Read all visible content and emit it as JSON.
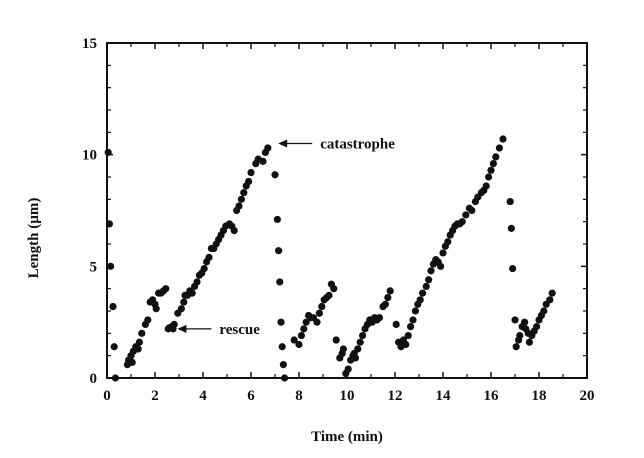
{
  "chart_data": {
    "type": "scatter",
    "title": "",
    "xlabel": "Time (min)",
    "ylabel": "Length (µm)",
    "xlim": [
      0,
      20
    ],
    "ylim": [
      0,
      15
    ],
    "xticks": [
      0,
      2,
      4,
      6,
      8,
      10,
      12,
      14,
      16,
      18,
      20
    ],
    "yticks": [
      0,
      5,
      10,
      15
    ],
    "grid": false,
    "legend": "none",
    "marker_color": "#111111",
    "series": [
      {
        "points": [
          [
            0.05,
            10.1
          ],
          [
            0.1,
            6.9
          ],
          [
            0.15,
            5.0
          ],
          [
            0.25,
            3.2
          ],
          [
            0.3,
            1.4
          ],
          [
            0.35,
            0.0
          ],
          [
            0.85,
            0.6
          ],
          [
            0.9,
            0.8
          ],
          [
            1.0,
            1.0
          ],
          [
            1.05,
            0.7
          ],
          [
            1.1,
            1.2
          ],
          [
            1.2,
            1.4
          ],
          [
            1.3,
            1.3
          ],
          [
            1.35,
            1.6
          ],
          [
            1.45,
            2.0
          ],
          [
            1.6,
            2.4
          ],
          [
            1.7,
            2.6
          ],
          [
            1.8,
            3.4
          ],
          [
            1.9,
            3.5
          ],
          [
            2.0,
            3.3
          ],
          [
            2.05,
            3.1
          ],
          [
            2.15,
            3.8
          ],
          [
            2.25,
            3.8
          ],
          [
            2.35,
            3.9
          ],
          [
            2.45,
            4.0
          ],
          [
            2.55,
            2.2
          ],
          [
            2.6,
            2.25
          ],
          [
            2.7,
            2.3
          ],
          [
            2.75,
            2.2
          ],
          [
            2.8,
            2.4
          ],
          [
            2.95,
            2.9
          ],
          [
            3.1,
            3.1
          ],
          [
            3.2,
            3.4
          ],
          [
            3.25,
            3.7
          ],
          [
            3.35,
            3.7
          ],
          [
            3.45,
            3.9
          ],
          [
            3.55,
            3.8
          ],
          [
            3.65,
            4.1
          ],
          [
            3.75,
            4.3
          ],
          [
            3.85,
            4.6
          ],
          [
            3.95,
            4.7
          ],
          [
            4.05,
            4.9
          ],
          [
            4.15,
            5.2
          ],
          [
            4.25,
            5.4
          ],
          [
            4.35,
            5.8
          ],
          [
            4.45,
            5.8
          ],
          [
            4.55,
            6.0
          ],
          [
            4.65,
            6.2
          ],
          [
            4.75,
            6.4
          ],
          [
            4.85,
            6.6
          ],
          [
            4.95,
            6.8
          ],
          [
            5.1,
            6.9
          ],
          [
            5.2,
            6.8
          ],
          [
            5.3,
            6.6
          ],
          [
            5.4,
            7.5
          ],
          [
            5.5,
            7.7
          ],
          [
            5.6,
            8.0
          ],
          [
            5.7,
            8.3
          ],
          [
            5.8,
            8.6
          ],
          [
            5.9,
            8.8
          ],
          [
            6.0,
            9.2
          ],
          [
            6.2,
            9.6
          ],
          [
            6.3,
            9.8
          ],
          [
            6.5,
            9.7
          ],
          [
            6.6,
            10.1
          ],
          [
            6.7,
            10.3
          ],
          [
            7.0,
            9.1
          ],
          [
            7.1,
            7.1
          ],
          [
            7.15,
            5.7
          ],
          [
            7.2,
            4.3
          ],
          [
            7.25,
            2.5
          ],
          [
            7.3,
            1.4
          ],
          [
            7.35,
            0.6
          ],
          [
            7.4,
            0.0
          ],
          [
            7.8,
            1.7
          ],
          [
            8.0,
            1.5
          ],
          [
            8.1,
            1.9
          ],
          [
            8.2,
            2.2
          ],
          [
            8.3,
            2.5
          ],
          [
            8.4,
            2.8
          ],
          [
            8.5,
            2.7
          ],
          [
            8.6,
            2.7
          ],
          [
            8.75,
            2.5
          ],
          [
            8.85,
            2.9
          ],
          [
            8.95,
            3.2
          ],
          [
            9.05,
            3.5
          ],
          [
            9.15,
            3.6
          ],
          [
            9.25,
            3.7
          ],
          [
            9.35,
            4.2
          ],
          [
            9.45,
            4.0
          ],
          [
            9.55,
            1.7
          ],
          [
            9.7,
            0.9
          ],
          [
            9.8,
            1.1
          ],
          [
            9.85,
            1.3
          ],
          [
            9.95,
            0.2
          ],
          [
            10.05,
            0.4
          ],
          [
            10.15,
            0.8
          ],
          [
            10.25,
            1.0
          ],
          [
            10.3,
            1.1
          ],
          [
            10.35,
            0.9
          ],
          [
            10.45,
            1.3
          ],
          [
            10.55,
            1.6
          ],
          [
            10.65,
            1.9
          ],
          [
            10.75,
            2.2
          ],
          [
            10.85,
            2.4
          ],
          [
            10.95,
            2.6
          ],
          [
            11.05,
            2.5
          ],
          [
            11.15,
            2.7
          ],
          [
            11.25,
            2.6
          ],
          [
            11.35,
            2.7
          ],
          [
            11.5,
            3.2
          ],
          [
            11.6,
            3.3
          ],
          [
            11.7,
            3.6
          ],
          [
            11.8,
            3.9
          ],
          [
            12.05,
            2.4
          ],
          [
            12.15,
            1.6
          ],
          [
            12.25,
            1.4
          ],
          [
            12.35,
            1.7
          ],
          [
            12.45,
            1.5
          ],
          [
            12.55,
            1.9
          ],
          [
            12.65,
            2.3
          ],
          [
            12.75,
            2.6
          ],
          [
            12.85,
            3.0
          ],
          [
            12.95,
            3.3
          ],
          [
            13.05,
            3.5
          ],
          [
            13.15,
            3.8
          ],
          [
            13.3,
            4.1
          ],
          [
            13.4,
            4.4
          ],
          [
            13.5,
            4.8
          ],
          [
            13.6,
            5.1
          ],
          [
            13.7,
            5.3
          ],
          [
            13.8,
            5.2
          ],
          [
            13.9,
            5.0
          ],
          [
            14.0,
            5.6
          ],
          [
            14.1,
            5.9
          ],
          [
            14.2,
            6.1
          ],
          [
            14.3,
            6.4
          ],
          [
            14.4,
            6.6
          ],
          [
            14.5,
            6.8
          ],
          [
            14.6,
            6.9
          ],
          [
            14.7,
            6.9
          ],
          [
            14.8,
            7.0
          ],
          [
            14.95,
            7.3
          ],
          [
            15.1,
            7.6
          ],
          [
            15.2,
            7.5
          ],
          [
            15.35,
            7.9
          ],
          [
            15.45,
            8.1
          ],
          [
            15.6,
            8.3
          ],
          [
            15.7,
            8.4
          ],
          [
            15.8,
            8.6
          ],
          [
            15.9,
            9.0
          ],
          [
            16.0,
            9.3
          ],
          [
            16.1,
            9.6
          ],
          [
            16.2,
            9.9
          ],
          [
            16.35,
            10.3
          ],
          [
            16.5,
            10.7
          ],
          [
            16.8,
            7.9
          ],
          [
            16.85,
            6.7
          ],
          [
            16.9,
            4.9
          ],
          [
            17.0,
            2.6
          ],
          [
            17.05,
            1.4
          ],
          [
            17.15,
            1.7
          ],
          [
            17.2,
            1.9
          ],
          [
            17.3,
            2.3
          ],
          [
            17.4,
            2.5
          ],
          [
            17.45,
            2.2
          ],
          [
            17.55,
            2.0
          ],
          [
            17.6,
            1.6
          ],
          [
            17.7,
            1.9
          ],
          [
            17.8,
            2.1
          ],
          [
            17.9,
            2.3
          ],
          [
            18.0,
            2.6
          ],
          [
            18.1,
            2.8
          ],
          [
            18.2,
            3.0
          ],
          [
            18.3,
            3.3
          ],
          [
            18.45,
            3.5
          ],
          [
            18.55,
            3.8
          ]
        ]
      }
    ],
    "annotations": [
      {
        "text": "catastrophe",
        "point": [
          6.8,
          10.5
        ]
      },
      {
        "text": "rescue",
        "point": [
          2.6,
          2.2
        ]
      }
    ]
  }
}
